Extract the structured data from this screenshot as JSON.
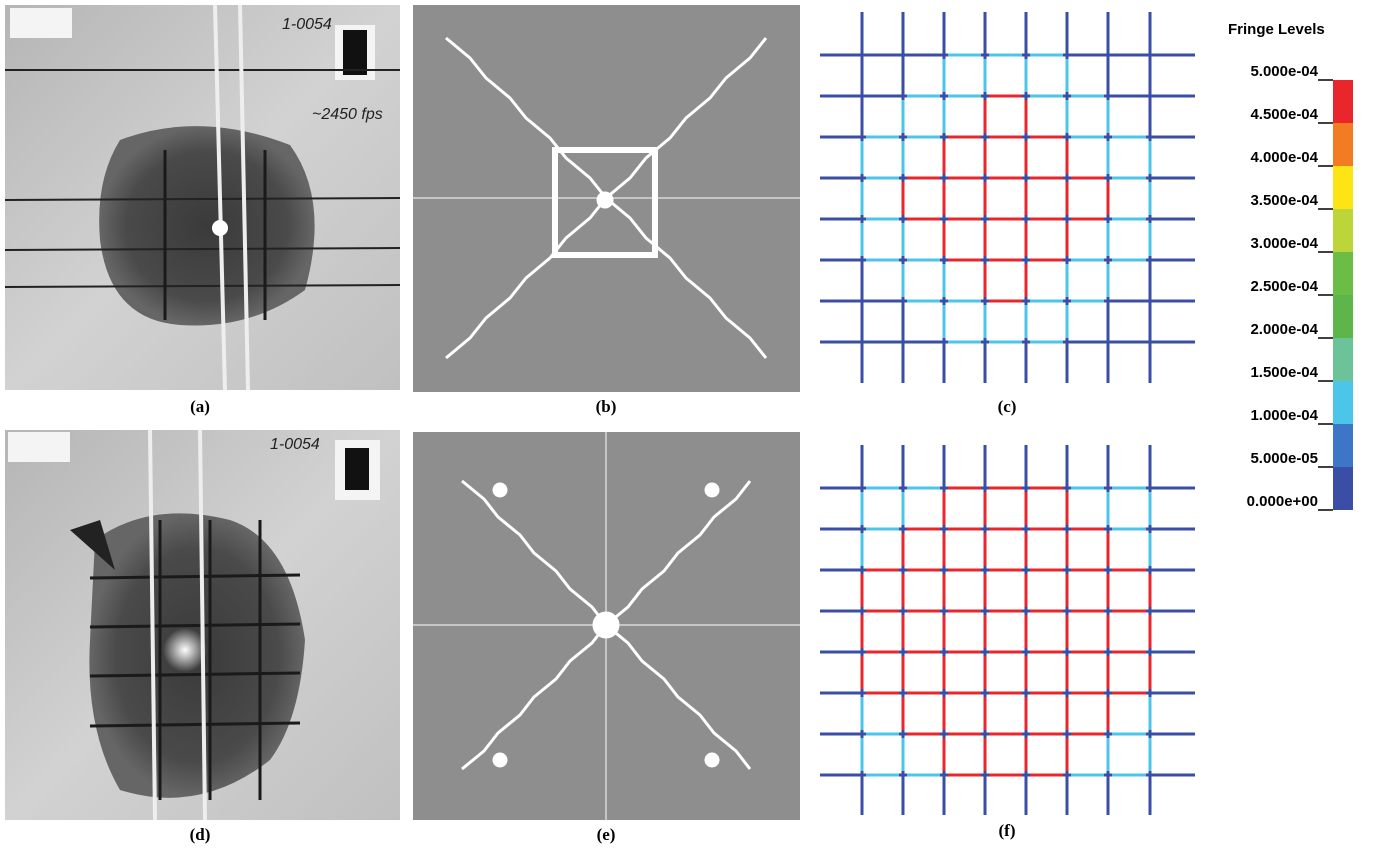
{
  "panels": [
    {
      "label": "(a)",
      "annotations": [
        "1-0054",
        "~2450 fps"
      ]
    },
    {
      "label": "(b)"
    },
    {
      "label": "(c)"
    },
    {
      "label": "(d)",
      "annotations": [
        "1-0054"
      ]
    },
    {
      "label": "(e)"
    },
    {
      "label": "(f)"
    }
  ],
  "legend": {
    "title": "Fringe Levels",
    "levels": [
      "5.000e-04",
      "4.500e-04",
      "4.000e-04",
      "3.500e-04",
      "3.000e-04",
      "2.500e-04",
      "2.000e-04",
      "1.500e-04",
      "1.000e-04",
      "5.000e-05",
      "0.000e+00"
    ],
    "colors": [
      "#e8262b",
      "#f37b21",
      "#fde414",
      "#bcd63a",
      "#6cbd45",
      "#5db54c",
      "#6cc39a",
      "#4cc6e8",
      "#3d76c6",
      "#3a4ea6"
    ]
  }
}
